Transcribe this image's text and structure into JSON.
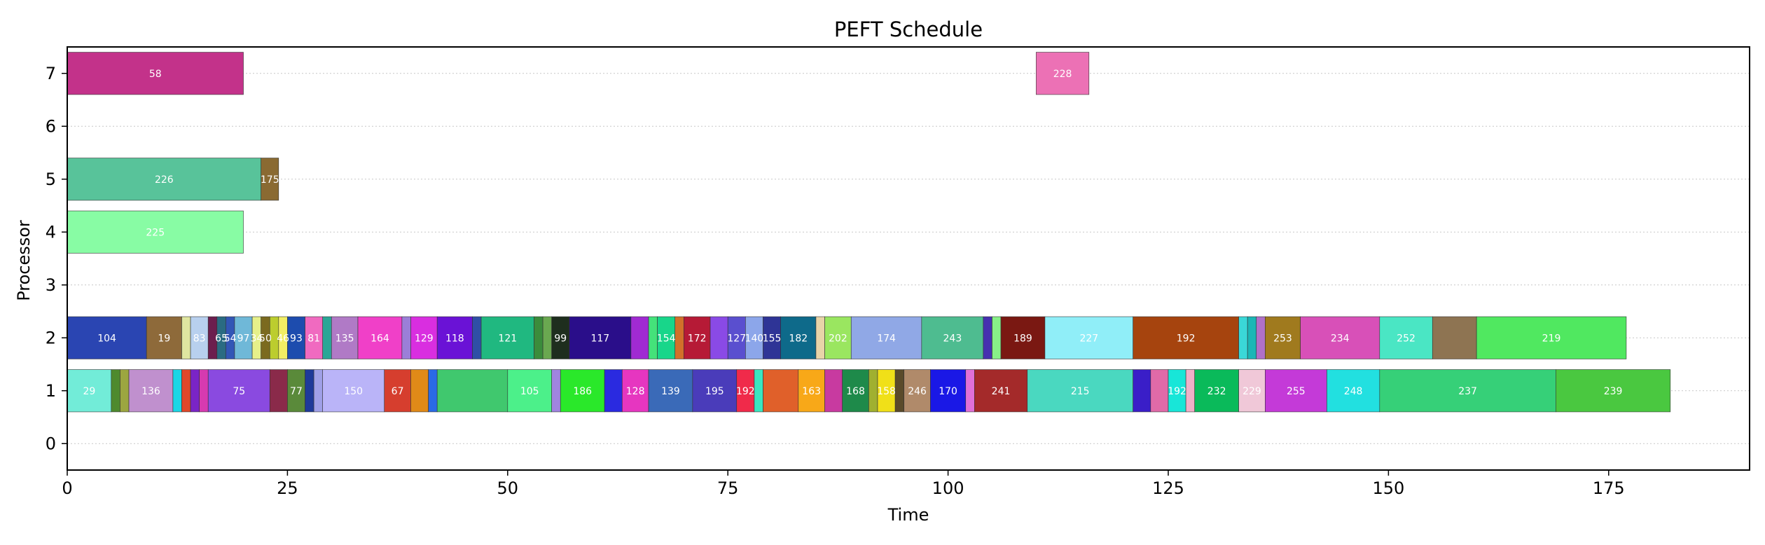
{
  "chart_data": {
    "type": "gantt",
    "title": "PEFT Schedule",
    "xlabel": "Time",
    "ylabel": "Processor",
    "xlim": [
      0,
      191
    ],
    "ylim": [
      -0.5,
      7.5
    ],
    "xticks": [
      0,
      25,
      50,
      75,
      100,
      125,
      150,
      175
    ],
    "yticks": [
      0,
      1,
      2,
      3,
      4,
      5,
      6,
      7
    ],
    "grid": "horizontal dotted",
    "tasks": [
      {
        "p": 7,
        "start": 0,
        "end": 20,
        "label": "58",
        "color": "#c3328a"
      },
      {
        "p": 7,
        "start": 110,
        "end": 116,
        "label": "228",
        "color": "#ec71b5"
      },
      {
        "p": 5,
        "start": 0,
        "end": 22,
        "label": "226",
        "color": "#58c39a"
      },
      {
        "p": 5,
        "start": 22,
        "end": 24,
        "label": "175",
        "color": "#8a6a32"
      },
      {
        "p": 4,
        "start": 0,
        "end": 20,
        "label": "225",
        "color": "#88fca4"
      },
      {
        "p": 2,
        "start": 0,
        "end": 9,
        "label": "104",
        "color": "#2a45b2"
      },
      {
        "p": 2,
        "start": 9,
        "end": 13,
        "label": "19",
        "color": "#8e6a3a"
      },
      {
        "p": 2,
        "start": 13,
        "end": 14,
        "label": "",
        "color": "#dfe6a0"
      },
      {
        "p": 2,
        "start": 14,
        "end": 16,
        "label": "83",
        "color": "#b8d0ee"
      },
      {
        "p": 2,
        "start": 16,
        "end": 17,
        "label": "",
        "color": "#6c1e4e"
      },
      {
        "p": 2,
        "start": 17,
        "end": 18,
        "label": "65",
        "color": "#2a6b82"
      },
      {
        "p": 2,
        "start": 18,
        "end": 19,
        "label": "54",
        "color": "#3256b6"
      },
      {
        "p": 2,
        "start": 19,
        "end": 21,
        "label": "97",
        "color": "#6fb8d8"
      },
      {
        "p": 2,
        "start": 21,
        "end": 22,
        "label": "34",
        "color": "#e6f08a"
      },
      {
        "p": 2,
        "start": 22,
        "end": 23,
        "label": "50",
        "color": "#7b6a1f"
      },
      {
        "p": 2,
        "start": 23,
        "end": 24,
        "label": "",
        "color": "#bccd2e"
      },
      {
        "p": 2,
        "start": 24,
        "end": 25,
        "label": "46",
        "color": "#f2ee64"
      },
      {
        "p": 2,
        "start": 25,
        "end": 27,
        "label": "93",
        "color": "#1d4cae"
      },
      {
        "p": 2,
        "start": 27,
        "end": 29,
        "label": "81",
        "color": "#f06ac0"
      },
      {
        "p": 2,
        "start": 29,
        "end": 30,
        "label": "",
        "color": "#2aa696"
      },
      {
        "p": 2,
        "start": 30,
        "end": 33,
        "label": "135",
        "color": "#b07ac6"
      },
      {
        "p": 2,
        "start": 33,
        "end": 38,
        "label": "164",
        "color": "#f040c8"
      },
      {
        "p": 2,
        "start": 38,
        "end": 39,
        "label": "",
        "color": "#9b7fd8"
      },
      {
        "p": 2,
        "start": 39,
        "end": 42,
        "label": "129",
        "color": "#d92ee0"
      },
      {
        "p": 2,
        "start": 42,
        "end": 46,
        "label": "118",
        "color": "#6a12d6"
      },
      {
        "p": 2,
        "start": 46,
        "end": 47,
        "label": "",
        "color": "#2f4fa6"
      },
      {
        "p": 2,
        "start": 47,
        "end": 53,
        "label": "121",
        "color": "#20b880"
      },
      {
        "p": 2,
        "start": 53,
        "end": 54,
        "label": "",
        "color": "#3b8c3b"
      },
      {
        "p": 2,
        "start": 54,
        "end": 55,
        "label": "",
        "color": "#6aa850"
      },
      {
        "p": 2,
        "start": 55,
        "end": 57,
        "label": "99",
        "color": "#1e2e1e"
      },
      {
        "p": 2,
        "start": 57,
        "end": 64,
        "label": "117",
        "color": "#2a0e8a"
      },
      {
        "p": 2,
        "start": 64,
        "end": 66,
        "label": "",
        "color": "#a02ad2"
      },
      {
        "p": 2,
        "start": 66,
        "end": 67,
        "label": "",
        "color": "#44e27a"
      },
      {
        "p": 2,
        "start": 67,
        "end": 69,
        "label": "154",
        "color": "#18d68a"
      },
      {
        "p": 2,
        "start": 69,
        "end": 70,
        "label": "",
        "color": "#d2702a"
      },
      {
        "p": 2,
        "start": 70,
        "end": 73,
        "label": "172",
        "color": "#b61a36"
      },
      {
        "p": 2,
        "start": 73,
        "end": 75,
        "label": "",
        "color": "#8a4ae6"
      },
      {
        "p": 2,
        "start": 75,
        "end": 77,
        "label": "127",
        "color": "#5a4fcf"
      },
      {
        "p": 2,
        "start": 77,
        "end": 79,
        "label": "140",
        "color": "#8ca6ea"
      },
      {
        "p": 2,
        "start": 79,
        "end": 81,
        "label": "155",
        "color": "#2e3496"
      },
      {
        "p": 2,
        "start": 81,
        "end": 85,
        "label": "182",
        "color": "#0e6a8a"
      },
      {
        "p": 2,
        "start": 85,
        "end": 86,
        "label": "",
        "color": "#e8d4a8"
      },
      {
        "p": 2,
        "start": 86,
        "end": 89,
        "label": "202",
        "color": "#9ae660"
      },
      {
        "p": 2,
        "start": 89,
        "end": 97,
        "label": "174",
        "color": "#90a8e6"
      },
      {
        "p": 2,
        "start": 97,
        "end": 104,
        "label": "243",
        "color": "#4ebc90"
      },
      {
        "p": 2,
        "start": 104,
        "end": 105,
        "label": "",
        "color": "#4630b0"
      },
      {
        "p": 2,
        "start": 105,
        "end": 106,
        "label": "",
        "color": "#88f088"
      },
      {
        "p": 2,
        "start": 106,
        "end": 111,
        "label": "189",
        "color": "#7a1812"
      },
      {
        "p": 2,
        "start": 111,
        "end": 121,
        "label": "227",
        "color": "#90eef8"
      },
      {
        "p": 2,
        "start": 121,
        "end": 133,
        "label": "192",
        "color": "#a6440e"
      },
      {
        "p": 2,
        "start": 133,
        "end": 134,
        "label": "",
        "color": "#3ad8d8"
      },
      {
        "p": 2,
        "start": 134,
        "end": 135,
        "label": "",
        "color": "#1ab6b6"
      },
      {
        "p": 2,
        "start": 135,
        "end": 136,
        "label": "",
        "color": "#b070c8"
      },
      {
        "p": 2,
        "start": 136,
        "end": 140,
        "label": "253",
        "color": "#a07a1e"
      },
      {
        "p": 2,
        "start": 140,
        "end": 149,
        "label": "234",
        "color": "#d850b8"
      },
      {
        "p": 2,
        "start": 149,
        "end": 155,
        "label": "252",
        "color": "#4ae6c4"
      },
      {
        "p": 2,
        "start": 155,
        "end": 160,
        "label": "",
        "color": "#8e7452"
      },
      {
        "p": 2,
        "start": 160,
        "end": 177,
        "label": "219",
        "color": "#50e860"
      },
      {
        "p": 1,
        "start": 0,
        "end": 5,
        "label": "29",
        "color": "#72ecd8"
      },
      {
        "p": 1,
        "start": 5,
        "end": 6,
        "label": "",
        "color": "#4e8a2e"
      },
      {
        "p": 1,
        "start": 6,
        "end": 7,
        "label": "",
        "color": "#9ca640"
      },
      {
        "p": 1,
        "start": 7,
        "end": 12,
        "label": "136",
        "color": "#c090ce"
      },
      {
        "p": 1,
        "start": 12,
        "end": 13,
        "label": "",
        "color": "#1ad6e6"
      },
      {
        "p": 1,
        "start": 13,
        "end": 14,
        "label": "",
        "color": "#e0482a"
      },
      {
        "p": 1,
        "start": 14,
        "end": 15,
        "label": "",
        "color": "#7a24c6"
      },
      {
        "p": 1,
        "start": 15,
        "end": 16,
        "label": "",
        "color": "#d63ab0"
      },
      {
        "p": 1,
        "start": 16,
        "end": 23,
        "label": "75",
        "color": "#8a4ae0"
      },
      {
        "p": 1,
        "start": 23,
        "end": 25,
        "label": "",
        "color": "#8a2a4a"
      },
      {
        "p": 1,
        "start": 25,
        "end": 27,
        "label": "77",
        "color": "#5a8a3a"
      },
      {
        "p": 1,
        "start": 27,
        "end": 28,
        "label": "",
        "color": "#1e3a9a"
      },
      {
        "p": 1,
        "start": 28,
        "end": 29,
        "label": "",
        "color": "#a0a0e8"
      },
      {
        "p": 1,
        "start": 29,
        "end": 36,
        "label": "150",
        "color": "#bab4f8"
      },
      {
        "p": 1,
        "start": 36,
        "end": 39,
        "label": "67",
        "color": "#d63e2e"
      },
      {
        "p": 1,
        "start": 39,
        "end": 41,
        "label": "",
        "color": "#e08a18"
      },
      {
        "p": 1,
        "start": 41,
        "end": 42,
        "label": "",
        "color": "#2a6ae6"
      },
      {
        "p": 1,
        "start": 42,
        "end": 50,
        "label": "",
        "color": "#40c86e"
      },
      {
        "p": 1,
        "start": 50,
        "end": 55,
        "label": "105",
        "color": "#4cf08a"
      },
      {
        "p": 1,
        "start": 55,
        "end": 56,
        "label": "",
        "color": "#a084e0"
      },
      {
        "p": 1,
        "start": 56,
        "end": 61,
        "label": "186",
        "color": "#2ae82a"
      },
      {
        "p": 1,
        "start": 61,
        "end": 63,
        "label": "",
        "color": "#2a2ae0"
      },
      {
        "p": 1,
        "start": 63,
        "end": 66,
        "label": "128",
        "color": "#e636c0"
      },
      {
        "p": 1,
        "start": 66,
        "end": 71,
        "label": "139",
        "color": "#3a6ab8"
      },
      {
        "p": 1,
        "start": 71,
        "end": 76,
        "label": "195",
        "color": "#4a3cba"
      },
      {
        "p": 1,
        "start": 76,
        "end": 78,
        "label": "192",
        "color": "#f02a4a"
      },
      {
        "p": 1,
        "start": 78,
        "end": 79,
        "label": "",
        "color": "#3ae6c0"
      },
      {
        "p": 1,
        "start": 79,
        "end": 83,
        "label": "",
        "color": "#e0602a"
      },
      {
        "p": 1,
        "start": 83,
        "end": 86,
        "label": "163",
        "color": "#f8a818"
      },
      {
        "p": 1,
        "start": 86,
        "end": 88,
        "label": "",
        "color": "#c83aa0"
      },
      {
        "p": 1,
        "start": 88,
        "end": 91,
        "label": "168",
        "color": "#1e8a4a"
      },
      {
        "p": 1,
        "start": 91,
        "end": 92,
        "label": "",
        "color": "#a0b030"
      },
      {
        "p": 1,
        "start": 92,
        "end": 94,
        "label": "158",
        "color": "#f0e018"
      },
      {
        "p": 1,
        "start": 94,
        "end": 95,
        "label": "",
        "color": "#5a4a2a"
      },
      {
        "p": 1,
        "start": 95,
        "end": 98,
        "label": "246",
        "color": "#b08a6a"
      },
      {
        "p": 1,
        "start": 98,
        "end": 102,
        "label": "170",
        "color": "#1a18e6"
      },
      {
        "p": 1,
        "start": 102,
        "end": 103,
        "label": "",
        "color": "#e070d8"
      },
      {
        "p": 1,
        "start": 103,
        "end": 109,
        "label": "241",
        "color": "#a42a2a"
      },
      {
        "p": 1,
        "start": 109,
        "end": 121,
        "label": "215",
        "color": "#4ad8c0"
      },
      {
        "p": 1,
        "start": 121,
        "end": 123,
        "label": "",
        "color": "#3a1ec8"
      },
      {
        "p": 1,
        "start": 123,
        "end": 125,
        "label": "",
        "color": "#e06aa8"
      },
      {
        "p": 1,
        "start": 125,
        "end": 127,
        "label": "192",
        "color": "#18e6d8"
      },
      {
        "p": 1,
        "start": 127,
        "end": 128,
        "label": "",
        "color": "#f0b0c8"
      },
      {
        "p": 1,
        "start": 128,
        "end": 133,
        "label": "232",
        "color": "#0aba5a"
      },
      {
        "p": 1,
        "start": 133,
        "end": 136,
        "label": "229",
        "color": "#f0c8d8"
      },
      {
        "p": 1,
        "start": 136,
        "end": 143,
        "label": "255",
        "color": "#c43ad8"
      },
      {
        "p": 1,
        "start": 143,
        "end": 149,
        "label": "248",
        "color": "#22e0e0"
      },
      {
        "p": 1,
        "start": 149,
        "end": 169,
        "label": "237",
        "color": "#36d078"
      },
      {
        "p": 1,
        "start": 169,
        "end": 182,
        "label": "239",
        "color": "#4ac840"
      }
    ]
  }
}
